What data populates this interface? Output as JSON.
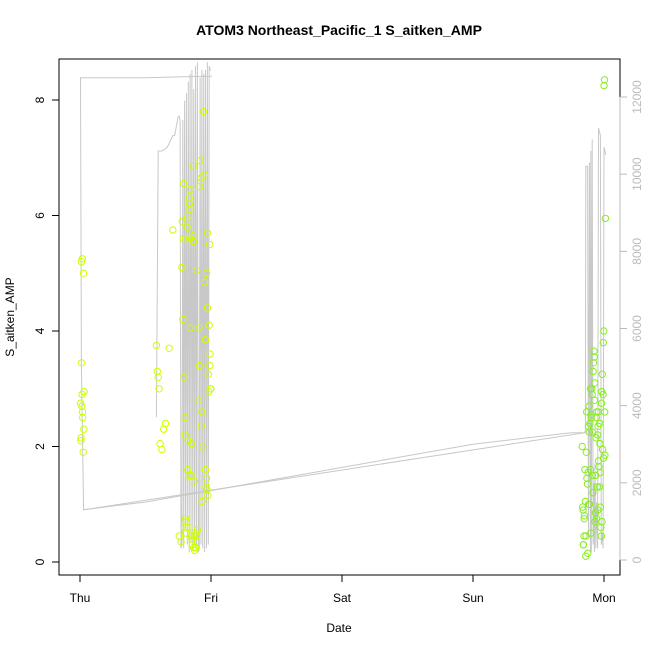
{
  "chart_data": {
    "type": "scatter",
    "title": "ATOM3 Northeast_Pacific_1 S_aitken_AMP",
    "xlabel": "Date",
    "ylabel": "S_aitken_AMP",
    "x_ticks": [
      "Thu",
      "Fri",
      "Sat",
      "Sun",
      "Mon"
    ],
    "y_ticks": [
      "0",
      "2",
      "4",
      "6",
      "8"
    ],
    "ylim": [
      0,
      8.6
    ],
    "y2_ticks": [
      "0",
      "2000",
      "4000",
      "6000",
      "8000",
      "10000",
      "12000"
    ],
    "y2lim": [
      -200,
      12800
    ],
    "grid": false,
    "colors": {
      "point_early": "#ccff00",
      "point_late": "#88ee22",
      "line": "#c8c8c8",
      "axis": "#000000",
      "axis_right": "#bbbbbb"
    },
    "series": [
      {
        "kind": "points",
        "axis": "left",
        "x": [
          "Thu 00:05",
          "Thu 00:10",
          "Thu 00:12",
          "Thu 00:15",
          "Thu 00:18",
          "Thu 00:20",
          "Thu 00:22",
          "Thu 00:25",
          "Thu 00:28",
          "Thu 00:30",
          "Thu 00:35",
          "Thu 00:38",
          "Thu 00:42",
          "Thu 00:45",
          "Thu 14:00",
          "Thu 14:10",
          "Thu 14:20",
          "Thu 14:30",
          "Thu 14:40",
          "Thu 15:00",
          "Thu 15:20",
          "Thu 15:40",
          "Thu 16:20",
          "Thu 17:00",
          "Thu 18:10",
          "Thu 18:30",
          "Thu 18:40",
          "Thu 18:50",
          "Thu 19:00",
          "Thu 19:05",
          "Thu 19:10",
          "Thu 19:15",
          "Thu 19:20",
          "Thu 19:25",
          "Thu 19:30",
          "Thu 19:35",
          "Thu 19:40",
          "Thu 19:45",
          "Thu 19:50",
          "Thu 19:55",
          "Thu 20:00",
          "Thu 20:05",
          "Thu 20:10",
          "Thu 20:15",
          "Thu 20:20",
          "Thu 20:25",
          "Thu 20:30",
          "Thu 20:35",
          "Thu 20:40",
          "Thu 20:45",
          "Thu 20:50",
          "Thu 20:55",
          "Thu 21:00",
          "Thu 21:10",
          "Thu 21:20",
          "Thu 21:30",
          "Thu 21:40",
          "Thu 21:50",
          "Thu 22:00",
          "Thu 22:10",
          "Thu 22:20",
          "Thu 22:30",
          "Thu 22:40",
          "Thu 22:50",
          "Thu 23:00",
          "Thu 23:05",
          "Thu 23:10",
          "Thu 23:15",
          "Thu 23:20",
          "Thu 23:25",
          "Thu 23:30",
          "Thu 23:35",
          "Thu 23:40",
          "Thu 23:45",
          "Thu 23:50",
          "Thu 23:55",
          "Thu 18:45",
          "Thu 19:12",
          "Thu 19:48",
          "Thu 20:12",
          "Thu 20:48",
          "Thu 21:12",
          "Thu 21:48",
          "Thu 22:12",
          "Thu 22:48",
          "Thu 23:12",
          "Thu 23:48",
          "Thu 18:55",
          "Thu 19:22",
          "Thu 19:58",
          "Thu 20:22",
          "Thu 20:58",
          "Thu 21:22",
          "Thu 21:58",
          "Thu 22:22",
          "Thu 22:58",
          "Thu 23:22",
          "Thu 23:58"
        ],
        "y": [
          2.75,
          2.1,
          2.15,
          5.2,
          3.45,
          2.7,
          2.9,
          5.25,
          2.6,
          2.5,
          1.9,
          5.0,
          2.3,
          2.95,
          3.75,
          3.3,
          3.2,
          3.0,
          2.05,
          1.95,
          2.3,
          2.4,
          3.7,
          5.75,
          0.45,
          0.35,
          5.1,
          4.2,
          6.55,
          3.2,
          0.6,
          2.2,
          5.6,
          0.5,
          0.7,
          5.95,
          5.8,
          1.6,
          2.1,
          1.5,
          6.3,
          6.2,
          5.6,
          4.05,
          1.5,
          0.45,
          0.4,
          0.3,
          5.65,
          5.55,
          6.85,
          1.4,
          0.2,
          0.25,
          0.45,
          0.55,
          2.8,
          3.4,
          6.95,
          6.65,
          2.6,
          2.0,
          7.8,
          4.85,
          1.6,
          1.3,
          5.0,
          1.25,
          4.4,
          1.15,
          3.25,
          2.95,
          4.1,
          5.5,
          3.6,
          3.0,
          5.9,
          2.5,
          0.6,
          6.45,
          0.25,
          0.5,
          4.05,
          2.35,
          6.7,
          1.45,
          3.4,
          5.6,
          0.75,
          6.1,
          2.05,
          0.45,
          5.05,
          6.5,
          1.05,
          3.85,
          5.7,
          3.0
        ],
        "color_role": "point_early"
      },
      {
        "kind": "points",
        "axis": "left",
        "x": [
          "Sun 20:00",
          "Sun 20:10",
          "Sun 20:15",
          "Sun 20:20",
          "Sun 20:25",
          "Sun 20:30",
          "Sun 20:40",
          "Sun 20:50",
          "Sun 21:00",
          "Sun 21:10",
          "Sun 21:20",
          "Sun 21:30",
          "Sun 21:40",
          "Sun 21:50",
          "Sun 22:00",
          "Sun 22:10",
          "Sun 22:20",
          "Sun 22:30",
          "Sun 22:40",
          "Sun 22:50",
          "Sun 23:00",
          "Sun 23:10",
          "Sun 23:20",
          "Sun 23:30",
          "Sun 23:40",
          "Sun 23:50",
          "Mon 00:00",
          "Mon 00:05",
          "Mon 00:10",
          "Mon 00:15",
          "Sun 20:05",
          "Sun 20:35",
          "Sun 20:45",
          "Sun 21:05",
          "Sun 21:15",
          "Sun 21:25",
          "Sun 21:35",
          "Sun 21:45",
          "Sun 21:55",
          "Sun 22:05",
          "Sun 22:15",
          "Sun 22:25",
          "Sun 22:35",
          "Sun 22:45",
          "Sun 22:55",
          "Sun 23:05",
          "Sun 23:15",
          "Sun 23:25",
          "Sun 23:35",
          "Sun 23:45",
          "Sun 23:55",
          "Sun 20:12",
          "Sun 20:42",
          "Sun 21:02",
          "Sun 21:18",
          "Sun 21:38",
          "Sun 21:58",
          "Sun 22:18",
          "Sun 22:38",
          "Sun 22:58",
          "Sun 23:18",
          "Sun 23:38",
          "Sun 23:58",
          "Sun 20:22",
          "Sun 20:52",
          "Sun 21:12",
          "Sun 21:32",
          "Sun 21:52",
          "Sun 22:12",
          "Sun 22:32",
          "Sun 22:52",
          "Sun 23:12",
          "Sun 23:32",
          "Sun 23:52",
          "Mon 00:08"
        ],
        "y": [
          2.0,
          0.9,
          0.3,
          0.45,
          0.8,
          1.6,
          0.1,
          2.6,
          1.35,
          2.35,
          1.0,
          1.6,
          2.5,
          2.9,
          3.3,
          3.65,
          0.7,
          1.5,
          2.6,
          2.2,
          1.75,
          1.3,
          0.95,
          0.45,
          3.25,
          2.9,
          8.25,
          8.35,
          1.85,
          5.95,
          0.95,
          1.05,
          1.9,
          1.55,
          2.7,
          2.4,
          0.5,
          3.0,
          2.25,
          3.45,
          2.8,
          0.85,
          2.5,
          1.3,
          2.35,
          1.65,
          2.05,
          0.6,
          2.95,
          1.95,
          1.8,
          0.3,
          0.45,
          0.15,
          2.25,
          2.55,
          1.2,
          3.1,
          0.75,
          2.6,
          1.55,
          0.7,
          4.0,
          0.75,
          1.45,
          1.0,
          3.0,
          1.5,
          3.55,
          2.15,
          0.9,
          2.4,
          2.75,
          3.8,
          2.6
        ],
        "color_role": "point_late"
      },
      {
        "kind": "line",
        "axis": "right",
        "x": [
          "Thu 00:00",
          "Thu 00:05",
          "Thu 00:15",
          "Thu 00:40",
          "Sun 20:30",
          "Sun 20:35",
          "Sun 20:40",
          "Sun 21:00",
          "Sun 21:10",
          "Sun 21:20",
          "Sun 21:30",
          "Sun 21:35",
          "Sun 21:40",
          "Sun 21:50",
          "Sun 22:00",
          "Sun 22:10",
          "Sun 22:15",
          "Sun 22:20",
          "Sun 22:30",
          "Sun 22:40",
          "Sun 22:50",
          "Sun 23:00",
          "Sun 23:10",
          "Sun 23:20",
          "Sun 23:30",
          "Sun 23:40",
          "Sun 23:50",
          "Mon 00:00",
          "Mon 00:10",
          "Mon 00:20"
        ],
        "y": [
          12500,
          12500,
          5000,
          1300,
          3300,
          3400,
          10200,
          10200,
          600,
          10300,
          200,
          10600,
          200,
          10900,
          400,
          2000,
          200,
          2500,
          300,
          1500,
          300,
          11200,
          11100,
          11000,
          400,
          700,
          300,
          10700,
          10600,
          10500
        ],
        "color_role": "line"
      },
      {
        "kind": "line",
        "axis": "right",
        "x": [
          "Thu 00:40",
          "Thu 06:00",
          "Thu 12:00",
          "Thu 18:00",
          "Fri 00:00",
          "Fri 06:00",
          "Fri 12:00",
          "Fri 18:00",
          "Sat 00:00",
          "Sat 06:00",
          "Sat 12:00",
          "Sat 18:00",
          "Sun 00:00",
          "Sun 06:00",
          "Sun 12:00",
          "Sun 18:00",
          "Sun 20:30"
        ],
        "y": [
          1300,
          1400,
          1500,
          1650,
          1800,
          1950,
          2100,
          2250,
          2400,
          2550,
          2700,
          2850,
          3000,
          3100,
          3200,
          3300,
          3300
        ],
        "color_role": "line"
      },
      {
        "kind": "line",
        "axis": "right",
        "x": [
          "Thu 00:00",
          "Thu 06:00",
          "Thu 12:00",
          "Thu 18:00",
          "Fri 00:00",
          "Fri 00:10"
        ],
        "y": [
          12500,
          12500,
          12500,
          12520,
          12540,
          12550
        ],
        "color_role": "line"
      },
      {
        "kind": "line",
        "axis": "right",
        "x": [
          "Thu 14:00",
          "Thu 14:20",
          "Thu 15:00",
          "Thu 16:00",
          "Thu 17:00",
          "Thu 17:20",
          "Thu 18:00",
          "Thu 18:10",
          "Thu 18:20",
          "Thu 18:30",
          "Thu 18:40",
          "Thu 18:50",
          "Thu 19:00",
          "Thu 19:10",
          "Thu 19:20",
          "Thu 19:30",
          "Thu 19:40",
          "Thu 19:50",
          "Thu 20:00",
          "Thu 20:10",
          "Thu 20:20",
          "Thu 20:30",
          "Thu 20:40",
          "Thu 20:50",
          "Thu 21:00",
          "Thu 21:10",
          "Thu 21:20",
          "Thu 21:30",
          "Thu 21:40",
          "Thu 21:50",
          "Thu 22:00",
          "Thu 22:10",
          "Thu 22:20",
          "Thu 22:30",
          "Thu 22:40",
          "Thu 22:50",
          "Thu 23:00",
          "Thu 23:10",
          "Thu 23:20",
          "Thu 23:30",
          "Thu 23:40",
          "Thu 23:50",
          "Fri 00:00"
        ],
        "y": [
          3700,
          10600,
          10600,
          10700,
          11000,
          11000,
          11500,
          11500,
          11400,
          300,
          400,
          11400,
          300,
          11900,
          800,
          12100,
          400,
          12400,
          200,
          12600,
          500,
          12700,
          300,
          12200,
          400,
          12800,
          300,
          12900,
          200,
          300,
          12500,
          400,
          12700,
          300,
          12600,
          200,
          12700,
          300,
          12900,
          400,
          12800,
          12700,
          12700
        ],
        "color_role": "line"
      }
    ]
  }
}
